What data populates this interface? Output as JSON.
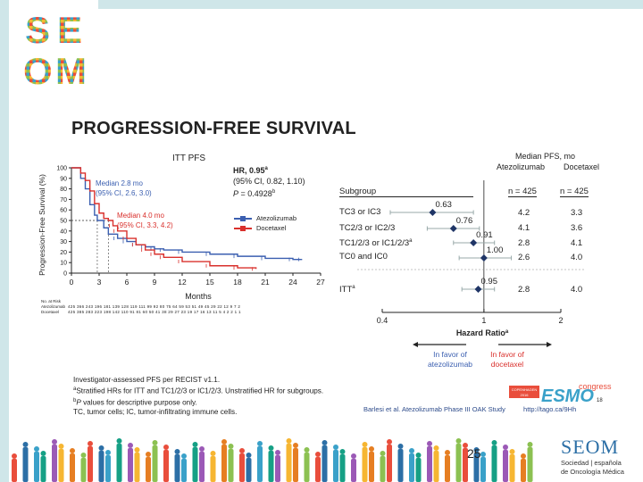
{
  "slide": {
    "title": "PROGRESSION-FREE SURVIVAL",
    "page_number": "25"
  },
  "logo_top": {
    "letters": [
      "S",
      "E",
      "O",
      "M"
    ]
  },
  "logo_bottom": {
    "name": "SEOM",
    "sub1": "Sociedad | española",
    "sub2": "de Oncología Médica"
  },
  "colors": {
    "atezolizumab": "#3b5fb0",
    "docetaxel": "#d9302c",
    "accent_bar": "#cfe6e9",
    "forest_marker": "#1f3566"
  },
  "chart_data": [
    {
      "type": "line",
      "title": "ITT PFS",
      "xlabel": "Months",
      "ylabel": "Progression-Free Survival (%)",
      "xlim": [
        0,
        27
      ],
      "ylim": [
        0,
        100
      ],
      "x_ticks": [
        "0",
        "3",
        "6",
        "9",
        "12",
        "15",
        "18",
        "21",
        "24",
        "27"
      ],
      "y_ticks": [
        "0",
        "10",
        "20",
        "30",
        "40",
        "50",
        "60",
        "70",
        "80",
        "90",
        "100"
      ],
      "series": [
        {
          "name": "Atezolizumab",
          "x": [
            0,
            1,
            1.5,
            2,
            2.5,
            2.8,
            3.5,
            4,
            5,
            6,
            7,
            8,
            9,
            10,
            12,
            15,
            18,
            21,
            24,
            25
          ],
          "y": [
            100,
            90,
            80,
            65,
            55,
            50,
            43,
            37,
            33,
            30,
            27,
            25,
            23,
            22,
            20,
            18,
            16,
            14,
            13,
            13
          ]
        },
        {
          "name": "Docetaxel",
          "x": [
            0,
            1,
            1.5,
            2,
            2.5,
            3,
            3.5,
            4,
            4.5,
            5,
            6,
            7,
            8,
            9,
            10,
            12,
            15,
            18,
            20
          ],
          "y": [
            100,
            95,
            88,
            78,
            66,
            57,
            52,
            50,
            45,
            40,
            33,
            27,
            22,
            18,
            15,
            11,
            7,
            5,
            4
          ]
        }
      ],
      "medians": [
        {
          "label": "Median 2.8 mo",
          "ci": "(95% CI, 2.6, 3.0)",
          "x": 2.8,
          "series": "Atezolizumab"
        },
        {
          "label": "Median 4.0 mo",
          "ci": "(95% CI, 3.3, 4.2)",
          "x": 4.0,
          "series": "Docetaxel"
        }
      ],
      "hr": {
        "label": "HR, 0.95",
        "sup": "a",
        "ci": "(95% CI, 0.82, 1.10)",
        "p_label": "P",
        "p_value": " = 0.4928",
        "p_sup": "b"
      },
      "legend": [
        "Atezolizumab",
        "Docetaxel"
      ],
      "legend_position": "right",
      "at_risk": {
        "title": "No. at Risk",
        "rows": [
          {
            "name": "Atezolizumab",
            "values": "425 366 243 196 181 139 128 119 111 99 92 80 75 64 59 53 51 49 45 29 22 12 9 7 2"
          },
          {
            "name": "Docetaxel",
            "values": "425 385 283 223 198 142 110 91 81 60 50 41 38 29 27 23 19 17 16 13 11 5 4 2 2 1 1"
          }
        ]
      }
    },
    {
      "type": "forest",
      "xlabel": "Hazard Ratio",
      "xlabel_sup": "a",
      "x_scale": "log",
      "xlim": [
        0.4,
        2
      ],
      "x_ticks": [
        "0.4",
        "1",
        "2"
      ],
      "header": {
        "line1": "Median PFS, mo",
        "atezo": "Atezolizumab",
        "doce": "Docetaxel"
      },
      "subgroup_label": "Subgroup",
      "n_atezo": "n = 425",
      "n_doce": "n = 425",
      "rows": [
        {
          "label": "TC3 or IC3",
          "sup": "",
          "hr": 0.63,
          "hr_label": "0.63",
          "lo": 0.43,
          "hi": 0.91,
          "atezo": "4.2",
          "doce": "3.3"
        },
        {
          "label": "TC2/3 or IC2/3",
          "sup": "",
          "hr": 0.76,
          "hr_label": "0.76",
          "lo": 0.6,
          "hi": 0.96,
          "atezo": "4.1",
          "doce": "3.6"
        },
        {
          "label": "TC1/2/3 or IC1/2/3",
          "sup": "a",
          "hr": 0.91,
          "hr_label": "0.91",
          "lo": 0.76,
          "hi": 1.1,
          "atezo": "2.8",
          "doce": "4.1"
        },
        {
          "label": "TC0 and IC0",
          "sup": "",
          "hr": 1.0,
          "hr_label": "1.00",
          "lo": 0.8,
          "hi": 1.28,
          "atezo": "2.6",
          "doce": "4.0"
        }
      ],
      "itt": {
        "label": "ITT",
        "sup": "a",
        "hr": 0.95,
        "hr_label": "0.95",
        "lo": 0.82,
        "hi": 1.1,
        "atezo": "2.8",
        "doce": "4.0"
      },
      "favor_left": [
        "In favor of",
        "atezolizumab"
      ],
      "favor_right": [
        "In favor of",
        "docetaxel"
      ]
    }
  ],
  "footnotes": {
    "line1": "Investigator-assessed PFS per RECIST v1.1.",
    "line2_sup": "a",
    "line2": "Stratified HRs for ITT and TC1/2/3 or IC1/2/3. Unstratified HR for subgroups.",
    "line3_sup": "b",
    "line3_p": "P",
    "line3": " values for descriptive purpose only.",
    "line4": "TC, tumor cells; IC, tumor-infiltrating immune cells."
  },
  "congress": {
    "word": "congress",
    "brand": "ESMO",
    "city": "COPENHAGEN",
    "year": "2016",
    "slide_no": "18"
  },
  "citation": {
    "author": "Barlesi et al. Atezolizumab Phase III OAK Study",
    "url": "http://tago.ca/9Hh"
  }
}
